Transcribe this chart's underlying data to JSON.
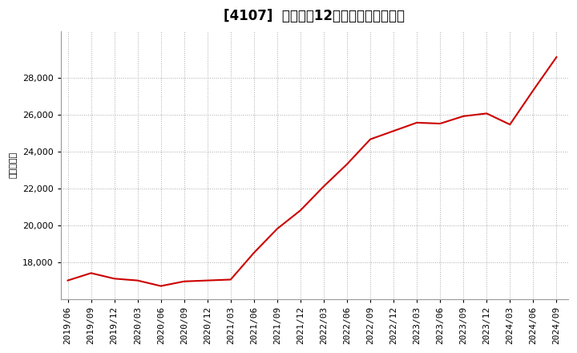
{
  "title": "[4107]  売上高の12か月移動合計の推移",
  "ylabel": "（百万円）",
  "line_color": "#cc0000",
  "bg_color": "#ffffff",
  "plot_bg_color": "#ffffff",
  "grid_color": "#aaaaaa",
  "dates": [
    "2019/06",
    "2019/09",
    "2019/12",
    "2020/03",
    "2020/06",
    "2020/09",
    "2020/12",
    "2021/03",
    "2021/06",
    "2021/09",
    "2021/12",
    "2022/03",
    "2022/06",
    "2022/09",
    "2022/12",
    "2023/03",
    "2023/06",
    "2023/09",
    "2023/12",
    "2024/03",
    "2024/06",
    "2024/09"
  ],
  "values": [
    17000,
    17400,
    17100,
    17000,
    16700,
    16950,
    17000,
    17050,
    18500,
    19800,
    20800,
    22100,
    23300,
    24650,
    25100,
    25550,
    25500,
    25900,
    26050,
    25450,
    27300,
    29100
  ],
  "ylim_min": 16000,
  "ylim_max": 30500,
  "yticks": [
    18000,
    20000,
    22000,
    24000,
    26000,
    28000
  ],
  "title_fontsize": 12,
  "tick_fontsize": 8,
  "ylabel_fontsize": 8
}
